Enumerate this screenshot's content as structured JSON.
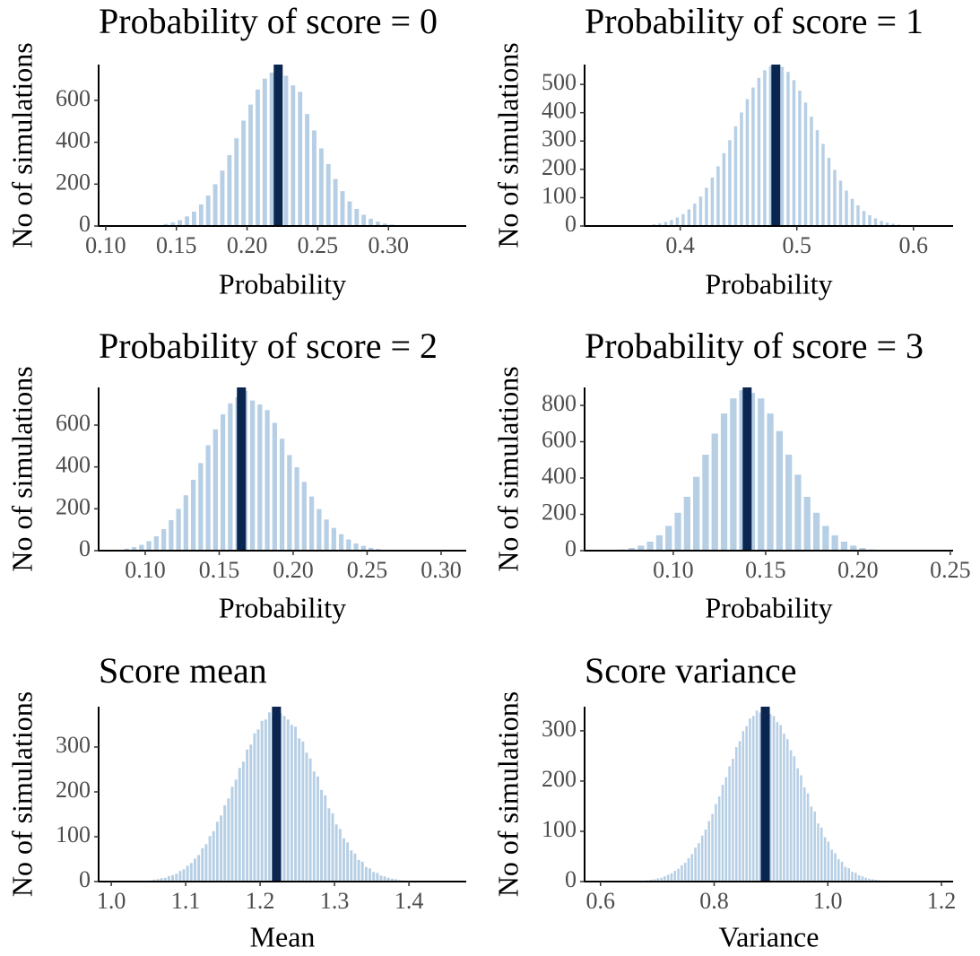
{
  "chart_data": [
    {
      "type": "histogram",
      "title": "Probability of score = 0",
      "xlabel": "Probability",
      "ylabel": "No of simulations",
      "color": "#b7cfe5",
      "vline": 0.222,
      "vline_color": "#0a2550",
      "xlim": [
        0.095,
        0.355
      ],
      "ylim": [
        0,
        771
      ],
      "xticks": [
        {
          "value": 0.1,
          "label": "0.10"
        },
        0.15,
        {
          "value": 0.2,
          "label": "0.20"
        },
        0.25,
        {
          "value": 0.3,
          "label": "0.30"
        }
      ],
      "yticks": [
        0,
        200,
        400,
        600
      ],
      "bins": [
        0.125,
        0.13,
        0.135,
        0.14,
        0.145,
        0.15,
        0.155,
        0.16,
        0.165,
        0.17,
        0.175,
        0.18,
        0.185,
        0.19,
        0.195,
        0.2,
        0.205,
        0.21,
        0.215,
        0.22,
        0.225,
        0.23,
        0.235,
        0.24,
        0.245,
        0.25,
        0.255,
        0.26,
        0.265,
        0.27,
        0.275,
        0.28,
        0.285,
        0.29,
        0.295,
        0.3,
        0.305,
        0.31,
        0.315,
        0.32,
        0.325
      ],
      "counts": [
        2,
        3,
        6,
        11,
        18,
        29,
        47,
        70,
        104,
        147,
        201,
        266,
        340,
        420,
        505,
        581,
        653,
        705,
        734,
        760,
        719,
        673,
        642,
        536,
        458,
        372,
        297,
        226,
        168,
        119,
        83,
        55,
        36,
        22,
        13,
        8,
        5,
        3,
        1,
        1
      ]
    },
    {
      "type": "histogram",
      "title": "Probability of score = 1",
      "xlabel": "Probability",
      "ylabel": "No of simulations",
      "color": "#b7cfe5",
      "vline": 0.482,
      "vline_color": "#0a2550",
      "xlim": [
        0.318,
        0.634
      ],
      "ylim": [
        0,
        570
      ],
      "xticks": [
        0.4,
        0.5,
        0.6
      ],
      "yticks": [
        0,
        100,
        200,
        300,
        400,
        500
      ],
      "bins": [
        0.36,
        0.365,
        0.37,
        0.375,
        0.38,
        0.385,
        0.39,
        0.395,
        0.4,
        0.405,
        0.41,
        0.415,
        0.42,
        0.425,
        0.43,
        0.435,
        0.44,
        0.445,
        0.45,
        0.455,
        0.46,
        0.465,
        0.47,
        0.475,
        0.48,
        0.485,
        0.49,
        0.495,
        0.5,
        0.505,
        0.51,
        0.515,
        0.52,
        0.525,
        0.53,
        0.535,
        0.54,
        0.545,
        0.55,
        0.555,
        0.56,
        0.565,
        0.57,
        0.575,
        0.58,
        0.585,
        0.59,
        0.595,
        0.6,
        0.605,
        0.61
      ],
      "counts": [
        2,
        3,
        4,
        7,
        10,
        15,
        22,
        31,
        43,
        60,
        80,
        105,
        136,
        172,
        212,
        258,
        304,
        353,
        402,
        449,
        490,
        524,
        551,
        566,
        570,
        563,
        545,
        516,
        479,
        437,
        387,
        339,
        291,
        242,
        199,
        161,
        126,
        97,
        74,
        54,
        39,
        28,
        19,
        13,
        9,
        6,
        4,
        2,
        1,
        1
      ]
    },
    {
      "type": "histogram",
      "title": "Probability of score = 2",
      "xlabel": "Probability",
      "ylabel": "No of simulations",
      "color": "#b7cfe5",
      "vline": 0.165,
      "vline_color": "#0a2550",
      "xlim": [
        0.0685,
        0.317
      ],
      "ylim": [
        0,
        780
      ],
      "xticks": [
        {
          "value": 0.1,
          "label": "0.10"
        },
        0.15,
        {
          "value": 0.2,
          "label": "0.20"
        },
        0.25,
        {
          "value": 0.3,
          "label": "0.30"
        }
      ],
      "yticks": [
        0,
        200,
        400,
        600
      ],
      "bins": [
        0.08,
        0.085,
        0.09,
        0.095,
        0.1,
        0.105,
        0.11,
        0.115,
        0.12,
        0.125,
        0.13,
        0.135,
        0.14,
        0.145,
        0.15,
        0.155,
        0.16,
        0.165,
        0.17,
        0.175,
        0.18,
        0.185,
        0.19,
        0.195,
        0.2,
        0.205,
        0.21,
        0.215,
        0.22,
        0.225,
        0.23,
        0.235,
        0.24,
        0.245,
        0.25,
        0.255,
        0.26,
        0.265,
        0.27,
        0.275,
        0.28
      ],
      "counts": [
        6,
        11,
        18,
        29,
        47,
        70,
        104,
        147,
        201,
        266,
        340,
        420,
        505,
        581,
        653,
        705,
        734,
        765,
        719,
        700,
        673,
        612,
        536,
        458,
        400,
        330,
        260,
        200,
        150,
        110,
        80,
        55,
        36,
        24,
        15,
        9,
        5,
        3,
        2,
        1
      ]
    },
    {
      "type": "histogram",
      "title": "Probability of score = 3",
      "xlabel": "Probability",
      "ylabel": "No of simulations",
      "color": "#b7cfe5",
      "vline": 0.14,
      "vline_color": "#0a2550",
      "xlim": [
        0.052,
        0.2515
      ],
      "ylim": [
        0,
        899
      ],
      "xticks": [
        {
          "value": 0.1,
          "label": "0.10"
        },
        0.15,
        {
          "value": 0.2,
          "label": "0.20"
        },
        0.25
      ],
      "yticks": [
        0,
        200,
        400,
        600,
        800
      ],
      "bins": [
        0.065,
        0.07,
        0.075,
        0.08,
        0.085,
        0.09,
        0.095,
        0.1,
        0.105,
        0.11,
        0.115,
        0.12,
        0.125,
        0.13,
        0.135,
        0.14,
        0.145,
        0.15,
        0.155,
        0.16,
        0.165,
        0.17,
        0.175,
        0.18,
        0.185,
        0.19,
        0.195,
        0.2,
        0.205,
        0.21,
        0.215,
        0.22,
        0.225
      ],
      "counts": [
        4,
        8,
        16,
        29,
        51,
        86,
        138,
        210,
        298,
        408,
        530,
        646,
        757,
        840,
        885,
        870,
        840,
        757,
        660,
        530,
        420,
        298,
        210,
        138,
        86,
        51,
        29,
        16,
        8,
        4,
        2,
        1
      ]
    },
    {
      "type": "histogram",
      "title": "Score mean",
      "xlabel": "Mean",
      "ylabel": "No of simulations",
      "color": "#b7cfe5",
      "vline": 1.222,
      "vline_color": "#0a2550",
      "xlim": [
        0.983,
        1.477
      ],
      "ylim": [
        0,
        390
      ],
      "xticks": [
        {
          "value": 1,
          "label": "1.0"
        },
        1.1,
        1.2,
        1.3,
        1.4
      ],
      "yticks": [
        0,
        100,
        200,
        300
      ],
      "bins": [
        1.03,
        1.035,
        1.04,
        1.045,
        1.05,
        1.055,
        1.06,
        1.065,
        1.07,
        1.075,
        1.08,
        1.085,
        1.09,
        1.095,
        1.1,
        1.105,
        1.11,
        1.115,
        1.12,
        1.125,
        1.13,
        1.135,
        1.14,
        1.145,
        1.15,
        1.155,
        1.16,
        1.165,
        1.17,
        1.175,
        1.18,
        1.185,
        1.19,
        1.195,
        1.2,
        1.205,
        1.21,
        1.215,
        1.22,
        1.225,
        1.23,
        1.235,
        1.24,
        1.245,
        1.25,
        1.255,
        1.26,
        1.265,
        1.27,
        1.275,
        1.28,
        1.285,
        1.29,
        1.295,
        1.3,
        1.305,
        1.31,
        1.315,
        1.32,
        1.325,
        1.33,
        1.335,
        1.34,
        1.345,
        1.35,
        1.355,
        1.36,
        1.365,
        1.37,
        1.375,
        1.38,
        1.385,
        1.39,
        1.395,
        1.4,
        1.405,
        1.41,
        1.415,
        1.42,
        1.425,
        1.43
      ],
      "counts": [
        1,
        1,
        2,
        2,
        3,
        5,
        6,
        8,
        9,
        13,
        15,
        18,
        24,
        28,
        36,
        42,
        52,
        60,
        75,
        84,
        102,
        113,
        134,
        148,
        171,
        186,
        212,
        228,
        254,
        268,
        295,
        306,
        331,
        340,
        359,
        362,
        378,
        372,
        385,
        376,
        370,
        362,
        350,
        346,
        320,
        313,
        288,
        275,
        246,
        235,
        205,
        193,
        164,
        153,
        128,
        118,
        97,
        88,
        70,
        63,
        49,
        45,
        33,
        30,
        22,
        20,
        14,
        12,
        9,
        7,
        6,
        4,
        3,
        2,
        2,
        1,
        1,
        1,
        0,
        0
      ]
    },
    {
      "type": "histogram",
      "title": "Score variance",
      "xlabel": "Variance",
      "ylabel": "No of simulations",
      "color": "#b7cfe5",
      "vline": 0.89,
      "vline_color": "#0a2550",
      "xlim": [
        0.572,
        1.2205
      ],
      "ylim": [
        0,
        348
      ],
      "xticks": [
        0.6,
        0.8,
        {
          "value": 1,
          "label": "1.0"
        },
        1.2
      ],
      "yticks": [
        0,
        100,
        200,
        300
      ],
      "bins": [
        0.656,
        0.662,
        0.668,
        0.674,
        0.68,
        0.686,
        0.692,
        0.698,
        0.704,
        0.71,
        0.716,
        0.722,
        0.728,
        0.734,
        0.74,
        0.746,
        0.752,
        0.758,
        0.764,
        0.77,
        0.776,
        0.782,
        0.788,
        0.794,
        0.8,
        0.806,
        0.812,
        0.818,
        0.824,
        0.83,
        0.836,
        0.842,
        0.848,
        0.854,
        0.86,
        0.866,
        0.872,
        0.878,
        0.884,
        0.89,
        0.896,
        0.902,
        0.908,
        0.914,
        0.92,
        0.926,
        0.932,
        0.938,
        0.944,
        0.95,
        0.956,
        0.962,
        0.968,
        0.974,
        0.98,
        0.986,
        0.992,
        0.998,
        1.004,
        1.01,
        1.016,
        1.022,
        1.028,
        1.034,
        1.04,
        1.046,
        1.052,
        1.058,
        1.064,
        1.07,
        1.076,
        1.082,
        1.088,
        1.094,
        1.1,
        1.106,
        1.112,
        1.118,
        1.124,
        1.13,
        1.136
      ],
      "counts": [
        1,
        1,
        2,
        2,
        3,
        4,
        5,
        7,
        8,
        11,
        14,
        17,
        22,
        26,
        33,
        38,
        47,
        55,
        68,
        77,
        92,
        104,
        121,
        135,
        155,
        170,
        193,
        208,
        230,
        245,
        268,
        280,
        300,
        310,
        325,
        330,
        341,
        337,
        345,
        340,
        334,
        330,
        318,
        312,
        295,
        284,
        262,
        250,
        226,
        212,
        188,
        176,
        150,
        140,
        116,
        108,
        89,
        80,
        64,
        57,
        45,
        40,
        30,
        27,
        20,
        18,
        13,
        11,
        8,
        6,
        5,
        4,
        3,
        2,
        2,
        1,
        1,
        1,
        0,
        0
      ]
    }
  ]
}
